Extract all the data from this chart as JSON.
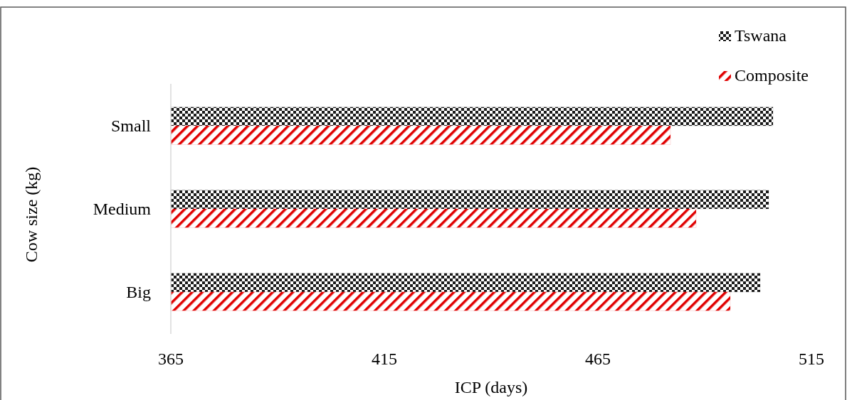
{
  "chart_data": {
    "type": "bar",
    "orientation": "horizontal",
    "xlabel": "ICP (days)",
    "ylabel": "Cow size (kg)",
    "categories": [
      "Small",
      "Medium",
      "Big"
    ],
    "series": [
      {
        "name": "Tswana",
        "color": "#1a1a1a",
        "values": [
          506,
          505,
          503
        ]
      },
      {
        "name": "Composite",
        "color": "#e00000",
        "values": [
          482,
          488,
          496
        ]
      }
    ],
    "xlim": [
      365,
      515
    ],
    "xticks": [
      365,
      415,
      465,
      515
    ],
    "legend": "top right",
    "grid": false
  }
}
